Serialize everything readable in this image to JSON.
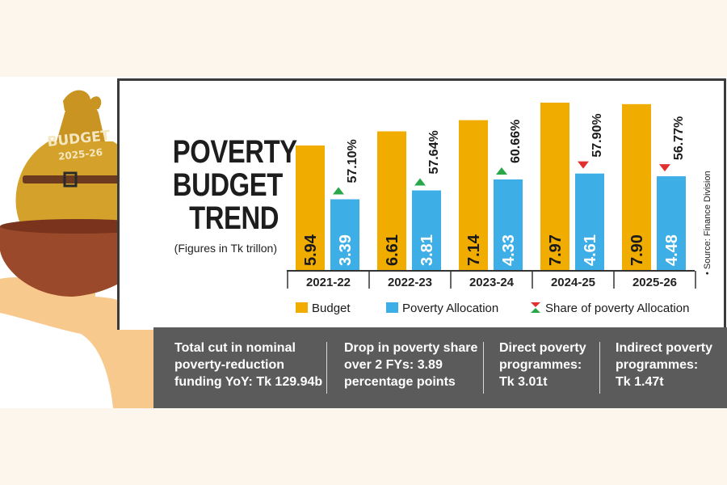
{
  "title_lines": [
    "POVERTY",
    "BUDGET",
    "TREND"
  ],
  "subtitle": "(Figures in Tk trillon)",
  "source": "• Source: Finance Division",
  "bag": {
    "label_top": "BUDGET",
    "label_year": "2025-26"
  },
  "colors": {
    "budget": "#f0ad00",
    "poverty": "#3daee6",
    "up": "#29a84a",
    "down": "#e03030",
    "footer": "#5b5b5b"
  },
  "chart_data": {
    "type": "bar",
    "title": "POVERTY BUDGET TREND",
    "ylabel": "Tk trillion",
    "categories": [
      "2021-22",
      "2022-23",
      "2023-24",
      "2024-25",
      "2025-26"
    ],
    "series": [
      {
        "name": "Budget",
        "values": [
          5.94,
          6.61,
          7.14,
          7.97,
          7.9
        ],
        "labels": [
          "5.94",
          "6.61",
          "7.14",
          "7.97",
          "7.90"
        ]
      },
      {
        "name": "Poverty Allocation",
        "values": [
          3.39,
          3.81,
          4.33,
          4.61,
          4.48
        ],
        "labels": [
          "3.39",
          "3.81",
          "4.33",
          "4.61",
          "4.48"
        ]
      }
    ],
    "share": {
      "name": "Share of poverty Allocation",
      "values": [
        57.1,
        57.64,
        60.66,
        57.9,
        56.77
      ],
      "labels": [
        "57.10%",
        "57.64%",
        "60.66%",
        "57.90%",
        "56.77%"
      ],
      "direction": [
        "up",
        "up",
        "up",
        "down",
        "down"
      ]
    },
    "legend": [
      "Budget",
      "Poverty Allocation",
      "Share of poverty Allocation"
    ]
  },
  "footer": [
    {
      "lines": [
        "Total cut in nominal",
        "poverty-reduction",
        "funding YoY: Tk 129.94b"
      ]
    },
    {
      "lines": [
        "Drop in poverty share",
        "over 2 FYs: 3.89",
        "percentage points"
      ]
    },
    {
      "lines": [
        "Direct poverty",
        "programmes:",
        "Tk 3.01t"
      ]
    },
    {
      "lines": [
        "Indirect poverty",
        "programmes:",
        "Tk 1.47t"
      ]
    }
  ]
}
